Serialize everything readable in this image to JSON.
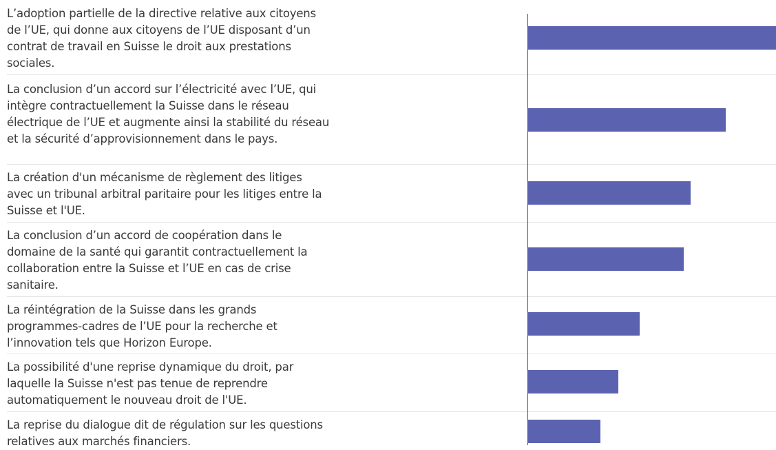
{
  "chart_data": {
    "type": "bar",
    "orientation": "horizontal",
    "categories": [
      "L’adoption partielle de la directive relative aux citoyens de l’UE, qui donne aux citoyens de l’UE disposant d’un contrat de travail en Suisse le droit aux prestations sociales.",
      "La conclusion d’un accord sur l’électricité avec l’UE, qui intègre contractuellement la Suisse dans le réseau électrique de l’UE et augmente ainsi la stabilité du réseau et la sécurité d’approvisionnement dans le pays.",
      "La création d'un mécanisme de règlement des litiges avec un tribunal arbitral paritaire pour les litiges entre la Suisse et l'UE.",
      "La conclusion d’un accord de coopération dans le domaine de la santé qui garantit contractuellement la collaboration entre la Suisse et l’UE en cas de crise sanitaire.",
      "La réintégration de la Suisse dans les grands programmes-cadres de l’UE pour la recherche et l’innovation tels que Horizon Europe.",
      "La possibilité d'une reprise dynamique du droit, par laquelle la Suisse n'est pas tenue de reprendre automatiquement le nouveau droit de l'UE.",
      "La reprise du dialogue dit de régulation sur les questions relatives aux marchés financiers."
    ],
    "values": [
      36,
      28.7,
      23.6,
      22.6,
      16.2,
      13.1,
      10.5
    ],
    "color": "#5b63b0",
    "xlim": [
      0,
      36
    ]
  }
}
